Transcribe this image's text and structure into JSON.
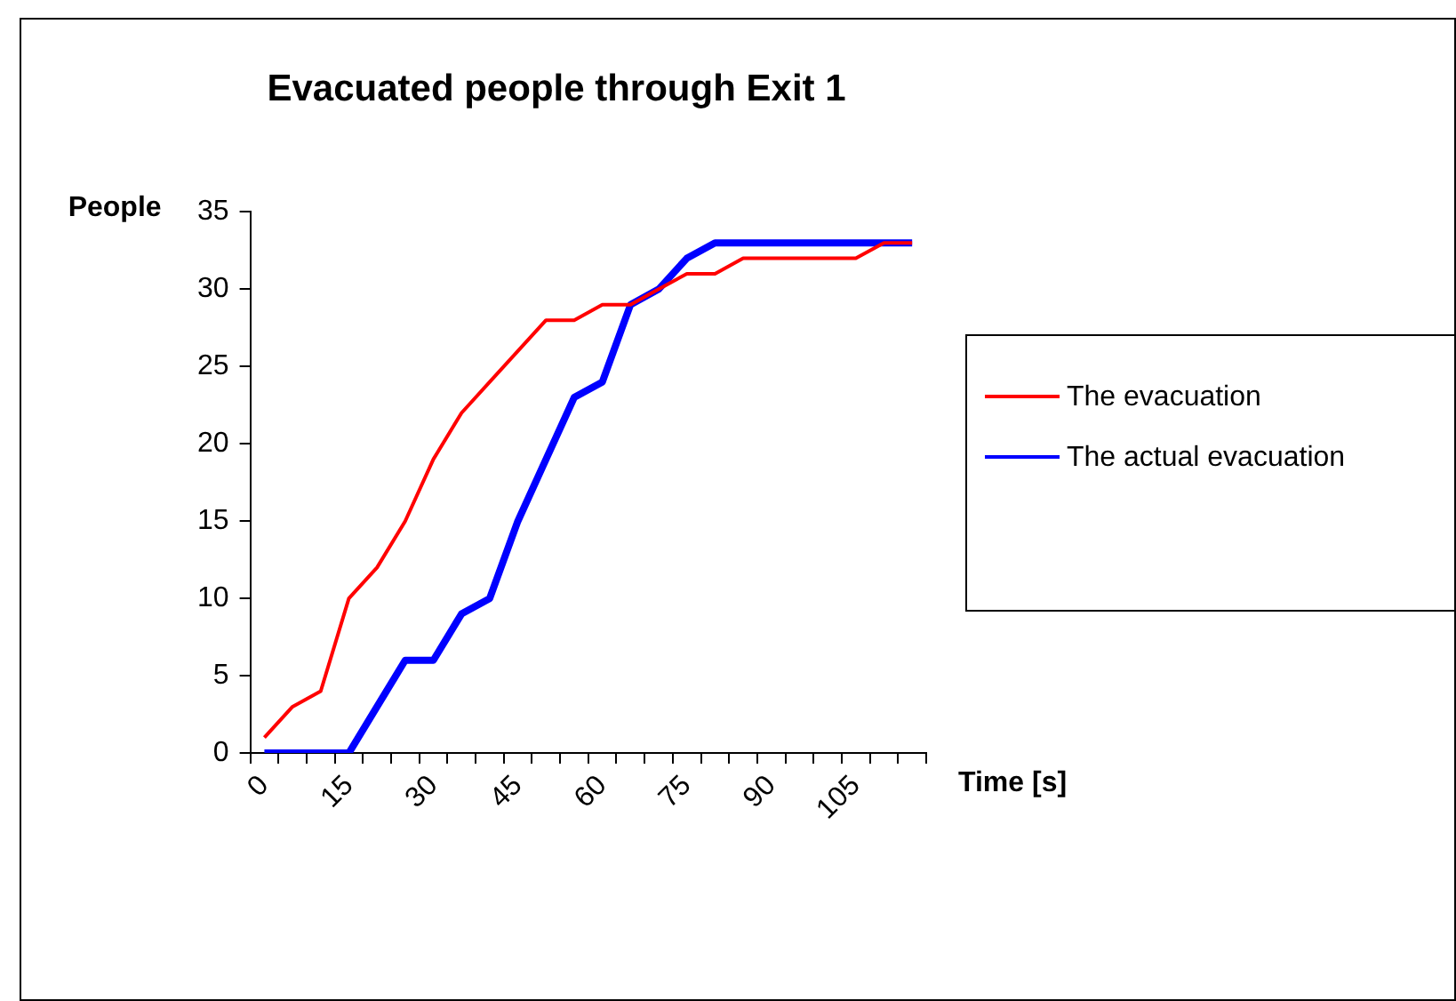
{
  "chart_data": {
    "type": "line",
    "title": "Evacuated people through Exit 1",
    "xlabel": "Time [s]",
    "ylabel": "People",
    "categories": [
      "0",
      null,
      null,
      "15",
      null,
      null,
      "30",
      null,
      null,
      "45",
      null,
      null,
      "60",
      null,
      null,
      "75",
      null,
      null,
      "90",
      null,
      null,
      "105",
      null,
      null
    ],
    "series": [
      {
        "name": "The evacuation",
        "color": "#ff0000",
        "values": [
          1,
          3,
          4,
          10,
          12,
          15,
          19,
          22,
          24,
          26,
          28,
          28,
          29,
          29,
          30,
          31,
          31,
          32,
          32,
          32,
          32,
          32,
          33,
          33
        ]
      },
      {
        "name": "The actual evacuation",
        "color": "#0000ff",
        "values": [
          0,
          0,
          0,
          0,
          3,
          6,
          6,
          9,
          10,
          15,
          19,
          23,
          24,
          29,
          30,
          32,
          33,
          33,
          33,
          33,
          33,
          33,
          33,
          33
        ]
      }
    ],
    "ylim": [
      0,
      35
    ],
    "yticks": [
      0,
      5,
      10,
      15,
      20,
      25,
      30,
      35
    ],
    "grid": false,
    "legend": "right",
    "marker": "none",
    "line_style": "solid"
  }
}
